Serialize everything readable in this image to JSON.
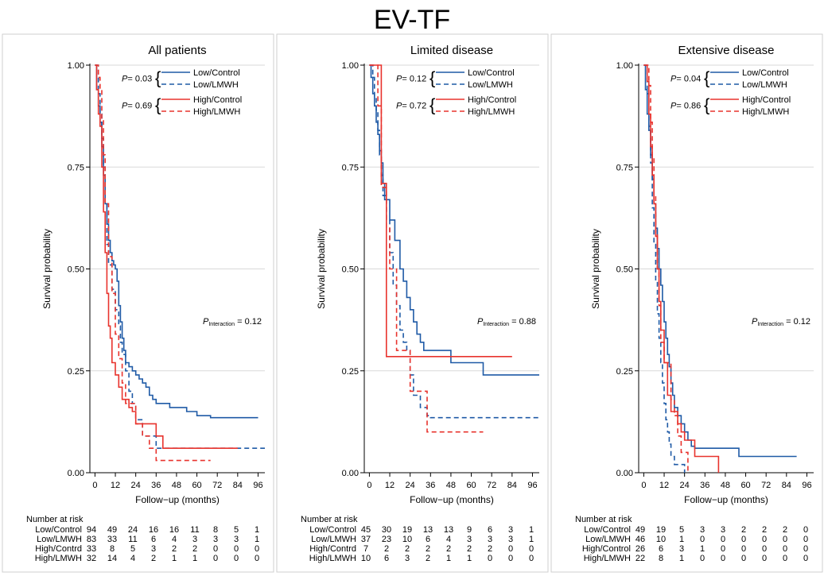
{
  "figure_title": "EV-TF",
  "colors": {
    "low": "#1f5aa6",
    "high": "#e8332d",
    "grid": "#d9d9d9",
    "panel_border": "#cfcfcf"
  },
  "chart_data": [
    {
      "type": "line",
      "title": "All patients",
      "xlabel": "Follow−up (months)",
      "ylabel": "Survival probability",
      "xlim": [
        -3,
        100
      ],
      "ylim": [
        0,
        1
      ],
      "xticks": [
        0,
        12,
        24,
        36,
        48,
        60,
        72,
        84,
        96
      ],
      "yticks": [
        0,
        0.25,
        0.5,
        0.75,
        1.0
      ],
      "ytick_labels": [
        "0.00",
        "0.25",
        "0.50",
        "0.75",
        "1.00"
      ],
      "grid": true,
      "legend_position": "top-right",
      "p_values": [
        {
          "label": "P",
          "value": "= 0.03"
        },
        {
          "label": "P",
          "value": "= 0.69"
        }
      ],
      "p_interaction": {
        "label": "P",
        "subscript": "Interaction",
        "value": "= 0.12"
      },
      "series": [
        {
          "name": "Low/Control",
          "color": "#1f5aa6",
          "dash": false,
          "x": [
            0,
            1,
            2,
            3,
            4,
            5,
            6,
            7,
            8,
            9,
            10,
            11,
            12,
            13,
            14,
            15,
            16,
            17,
            18,
            20,
            22,
            24,
            26,
            28,
            30,
            32,
            34,
            36,
            44,
            48,
            54,
            60,
            68,
            96
          ],
          "y": [
            1.0,
            0.94,
            0.9,
            0.86,
            0.8,
            0.73,
            0.66,
            0.61,
            0.57,
            0.54,
            0.52,
            0.51,
            0.5,
            0.47,
            0.41,
            0.37,
            0.33,
            0.3,
            0.27,
            0.26,
            0.25,
            0.24,
            0.23,
            0.22,
            0.21,
            0.19,
            0.18,
            0.17,
            0.16,
            0.16,
            0.15,
            0.14,
            0.135,
            0.135
          ]
        },
        {
          "name": "Low/LMWH",
          "color": "#1f5aa6",
          "dash": true,
          "x": [
            0,
            2,
            3,
            4,
            5,
            6,
            7,
            8,
            10,
            12,
            14,
            15,
            16,
            18,
            20,
            22,
            24,
            28,
            36,
            48,
            60,
            84,
            100
          ],
          "y": [
            1.0,
            0.93,
            0.88,
            0.82,
            0.75,
            0.66,
            0.56,
            0.51,
            0.45,
            0.4,
            0.36,
            0.32,
            0.29,
            0.25,
            0.2,
            0.17,
            0.13,
            0.09,
            0.06,
            0.06,
            0.06,
            0.06,
            0.06
          ]
        },
        {
          "name": "High/Control",
          "color": "#e8332d",
          "dash": false,
          "x": [
            0,
            1,
            2,
            3,
            4,
            5,
            6,
            7,
            8,
            9,
            10,
            12,
            14,
            16,
            18,
            20,
            22,
            24,
            27,
            36,
            40,
            84
          ],
          "y": [
            1.0,
            0.94,
            0.88,
            0.85,
            0.75,
            0.64,
            0.54,
            0.44,
            0.36,
            0.33,
            0.27,
            0.24,
            0.21,
            0.18,
            0.18,
            0.16,
            0.15,
            0.12,
            0.12,
            0.09,
            0.06,
            0.06
          ]
        },
        {
          "name": "High/LMWH",
          "color": "#e8332d",
          "dash": true,
          "x": [
            0,
            2,
            3,
            4,
            5,
            6,
            8,
            10,
            12,
            14,
            16,
            18,
            24,
            28,
            32,
            36,
            44,
            68
          ],
          "y": [
            1.0,
            0.97,
            0.94,
            0.87,
            0.78,
            0.66,
            0.53,
            0.44,
            0.34,
            0.28,
            0.22,
            0.17,
            0.12,
            0.09,
            0.06,
            0.03,
            0.03,
            0.03
          ]
        }
      ],
      "risk_table": {
        "title": "Number at risk",
        "rows": [
          {
            "label": "Low/Control",
            "values": [
              94,
              49,
              24,
              16,
              16,
              11,
              8,
              5,
              1
            ]
          },
          {
            "label": "Low/LMWH",
            "values": [
              83,
              33,
              11,
              6,
              4,
              3,
              3,
              3,
              1
            ]
          },
          {
            "label": "High/Contrd",
            "values": [
              33,
              8,
              5,
              3,
              2,
              2,
              0,
              0,
              0
            ]
          },
          {
            "label": "High/LMWH",
            "values": [
              32,
              14,
              4,
              2,
              1,
              1,
              0,
              0,
              0
            ]
          }
        ]
      }
    },
    {
      "type": "line",
      "title": "Limited disease",
      "xlabel": "Follow−up (months)",
      "ylabel": "Survival probability",
      "xlim": [
        -3,
        100
      ],
      "ylim": [
        0,
        1
      ],
      "xticks": [
        0,
        12,
        24,
        36,
        48,
        60,
        72,
        84,
        96
      ],
      "yticks": [
        0,
        0.25,
        0.5,
        0.75,
        1.0
      ],
      "ytick_labels": [
        "0.00",
        "0.25",
        "0.50",
        "0.75",
        "1.00"
      ],
      "grid": true,
      "legend_position": "top-right",
      "p_values": [
        {
          "label": "P",
          "value": "= 0.12"
        },
        {
          "label": "P",
          "value": "= 0.72"
        }
      ],
      "p_interaction": {
        "label": "P",
        "subscript": "Interaction",
        "value": "= 0.88"
      },
      "series": [
        {
          "name": "Low/Control",
          "color": "#1f5aa6",
          "dash": false,
          "x": [
            0,
            1,
            2,
            3,
            4,
            5,
            6,
            7,
            8,
            9,
            12,
            15,
            18,
            20,
            22,
            24,
            26,
            28,
            30,
            32,
            36,
            48,
            60,
            67,
            100
          ],
          "y": [
            1.0,
            0.97,
            0.93,
            0.9,
            0.86,
            0.83,
            0.79,
            0.76,
            0.71,
            0.67,
            0.62,
            0.57,
            0.5,
            0.47,
            0.43,
            0.4,
            0.37,
            0.34,
            0.32,
            0.3,
            0.3,
            0.27,
            0.27,
            0.24,
            0.24
          ]
        },
        {
          "name": "Low/LMWH",
          "color": "#1f5aa6",
          "dash": true,
          "x": [
            0,
            2,
            3,
            4,
            5,
            6,
            7,
            8,
            10,
            12,
            14,
            16,
            18,
            20,
            22,
            24,
            26,
            28,
            30,
            32,
            34,
            36,
            100
          ],
          "y": [
            1.0,
            0.97,
            0.92,
            0.89,
            0.84,
            0.78,
            0.73,
            0.68,
            0.62,
            0.54,
            0.46,
            0.41,
            0.35,
            0.32,
            0.3,
            0.24,
            0.19,
            0.19,
            0.16,
            0.16,
            0.14,
            0.135,
            0.135
          ]
        },
        {
          "name": "High/Control",
          "color": "#e8332d",
          "dash": false,
          "x": [
            0,
            6,
            7,
            9,
            10,
            84
          ],
          "y": [
            1.0,
            1.0,
            0.71,
            0.71,
            0.285,
            0.285
          ]
        },
        {
          "name": "High/LMWH",
          "color": "#e8332d",
          "dash": true,
          "x": [
            0,
            5,
            7,
            10,
            12,
            16,
            20,
            24,
            30,
            34,
            36,
            67
          ],
          "y": [
            1.0,
            0.9,
            0.7,
            0.6,
            0.5,
            0.3,
            0.3,
            0.2,
            0.2,
            0.1,
            0.1,
            0.1
          ]
        }
      ],
      "risk_table": {
        "title": "Number at risk",
        "rows": [
          {
            "label": "Low/Control",
            "values": [
              45,
              30,
              19,
              13,
              13,
              9,
              6,
              3,
              1
            ]
          },
          {
            "label": "Low/LMWH",
            "values": [
              37,
              23,
              10,
              6,
              4,
              3,
              3,
              3,
              1
            ]
          },
          {
            "label": "High/Contrd",
            "values": [
              7,
              2,
              2,
              2,
              2,
              2,
              2,
              0,
              0
            ]
          },
          {
            "label": "High/LMWH",
            "values": [
              10,
              6,
              3,
              2,
              1,
              1,
              0,
              0,
              0
            ]
          }
        ]
      }
    },
    {
      "type": "line",
      "title": "Extensive disease",
      "xlabel": "Follow−up (months)",
      "ylabel": "Survival probability",
      "xlim": [
        -3,
        100
      ],
      "ylim": [
        0,
        1
      ],
      "xticks": [
        0,
        12,
        24,
        36,
        48,
        60,
        72,
        84,
        96
      ],
      "yticks": [
        0,
        0.25,
        0.5,
        0.75,
        1.0
      ],
      "ytick_labels": [
        "0.00",
        "0.25",
        "0.50",
        "0.75",
        "1.00"
      ],
      "grid": true,
      "legend_position": "top-right",
      "p_values": [
        {
          "label": "P",
          "value": "= 0.04"
        },
        {
          "label": "P",
          "value": "= 0.86"
        }
      ],
      "p_interaction": {
        "label": "P",
        "subscript": "Interaction",
        "value": "= 0.12"
      },
      "series": [
        {
          "name": "Low/Control",
          "color": "#1f5aa6",
          "dash": false,
          "x": [
            0,
            1,
            2,
            3,
            4,
            5,
            6,
            7,
            8,
            9,
            10,
            11,
            12,
            13,
            14,
            15,
            16,
            17,
            18,
            20,
            22,
            24,
            26,
            28,
            30,
            56,
            90
          ],
          "y": [
            1.0,
            0.94,
            0.88,
            0.84,
            0.78,
            0.72,
            0.66,
            0.6,
            0.55,
            0.5,
            0.46,
            0.42,
            0.37,
            0.33,
            0.29,
            0.26,
            0.22,
            0.19,
            0.16,
            0.14,
            0.12,
            0.1,
            0.08,
            0.065,
            0.06,
            0.04,
            0.04
          ]
        },
        {
          "name": "Low/LMWH",
          "color": "#1f5aa6",
          "dash": true,
          "x": [
            0,
            2,
            3,
            4,
            5,
            6,
            7,
            8,
            9,
            10,
            11,
            12,
            13,
            14,
            15,
            16,
            18,
            20,
            22,
            24
          ],
          "y": [
            1.0,
            0.93,
            0.85,
            0.76,
            0.65,
            0.56,
            0.47,
            0.39,
            0.33,
            0.27,
            0.22,
            0.17,
            0.13,
            0.1,
            0.07,
            0.04,
            0.02,
            0.02,
            0.02,
            0.0
          ]
        },
        {
          "name": "High/Control",
          "color": "#e8332d",
          "dash": false,
          "x": [
            0,
            2,
            3,
            4,
            5,
            6,
            7,
            8,
            9,
            10,
            12,
            14,
            16,
            18,
            20,
            22,
            24,
            26,
            30,
            38,
            44
          ],
          "y": [
            1.0,
            0.96,
            0.88,
            0.8,
            0.73,
            0.66,
            0.58,
            0.5,
            0.42,
            0.35,
            0.27,
            0.19,
            0.15,
            0.15,
            0.12,
            0.1,
            0.08,
            0.08,
            0.04,
            0.04,
            0.0
          ]
        },
        {
          "name": "High/LMWH",
          "color": "#e8332d",
          "dash": true,
          "x": [
            0,
            3,
            4,
            5,
            6,
            7,
            8,
            9,
            10,
            12,
            14,
            16,
            18,
            20,
            22,
            24,
            26
          ],
          "y": [
            1.0,
            0.95,
            0.86,
            0.77,
            0.68,
            0.59,
            0.5,
            0.41,
            0.32,
            0.27,
            0.27,
            0.18,
            0.14,
            0.09,
            0.05,
            0.05,
            0.0
          ]
        }
      ],
      "risk_table": {
        "title": "Number at risk",
        "rows": [
          {
            "label": "Low/Control",
            "values": [
              49,
              19,
              5,
              3,
              3,
              2,
              2,
              2,
              0
            ]
          },
          {
            "label": "Low/LMWH",
            "values": [
              46,
              10,
              1,
              0,
              0,
              0,
              0,
              0,
              0
            ]
          },
          {
            "label": "High/Control",
            "values": [
              26,
              6,
              3,
              1,
              0,
              0,
              0,
              0,
              0
            ]
          },
          {
            "label": "High/LMWH",
            "values": [
              22,
              8,
              1,
              0,
              0,
              0,
              0,
              0,
              0
            ]
          }
        ]
      }
    }
  ]
}
